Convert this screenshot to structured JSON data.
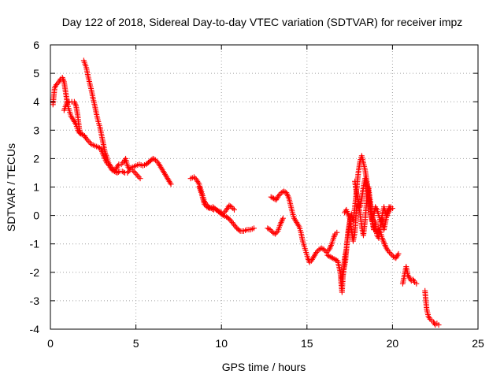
{
  "chart_data": {
    "type": "scatter",
    "title": "Day 122 of 2018, Sidereal Day-to-day VTEC variation (SDTVAR) for receiver impz",
    "xlabel": "GPS time / hours",
    "ylabel": "SDTVAR / TECUs",
    "xlim": [
      0,
      25
    ],
    "ylim": [
      -4,
      6
    ],
    "xticks": [
      0,
      5,
      10,
      15,
      20,
      25
    ],
    "yticks": [
      -4,
      -3,
      -2,
      -1,
      0,
      1,
      2,
      3,
      4,
      5,
      6
    ],
    "xtick_labels": [
      "0",
      "5",
      "10",
      "15",
      "20",
      "25"
    ],
    "ytick_labels": [
      "-4",
      "-3",
      "-2",
      "-1",
      "0",
      "1",
      "2",
      "3",
      "4",
      "5",
      "6"
    ],
    "grid": true,
    "marker": "+",
    "color": "#ff0000",
    "series": [
      {
        "name": "SDTVAR",
        "segments": [
          [
            [
              0.15,
              3.9
            ],
            [
              0.25,
              4.5
            ],
            [
              0.35,
              4.6
            ],
            [
              0.5,
              4.7
            ],
            [
              0.6,
              4.8
            ],
            [
              0.7,
              4.85
            ],
            [
              0.8,
              4.7
            ],
            [
              0.9,
              4.3
            ],
            [
              1.0,
              3.9
            ],
            [
              1.1,
              3.7
            ],
            [
              1.2,
              3.5
            ],
            [
              1.35,
              3.35
            ],
            [
              1.5,
              3.2
            ],
            [
              1.6,
              3.0
            ],
            [
              1.7,
              2.9
            ],
            [
              1.85,
              2.85
            ],
            [
              2.0,
              2.8
            ],
            [
              2.1,
              2.7
            ],
            [
              2.25,
              2.6
            ],
            [
              2.4,
              2.5
            ],
            [
              2.6,
              2.45
            ],
            [
              2.8,
              2.4
            ],
            [
              2.95,
              2.35
            ],
            [
              3.05,
              2.2
            ],
            [
              3.15,
              2.05
            ],
            [
              3.3,
              1.85
            ],
            [
              3.45,
              1.75
            ],
            [
              3.6,
              1.6
            ],
            [
              3.75,
              1.55
            ],
            [
              3.9,
              1.5
            ],
            [
              4.05,
              1.55
            ],
            [
              4.2,
              1.55
            ],
            [
              4.35,
              1.5
            ],
            [
              4.5,
              1.5
            ],
            [
              4.65,
              1.6
            ],
            [
              4.8,
              1.6
            ],
            [
              4.95,
              1.5
            ],
            [
              5.1,
              1.4
            ],
            [
              5.25,
              1.3
            ]
          ],
          [
            [
              0.8,
              3.7
            ],
            [
              0.95,
              3.95
            ],
            [
              1.1,
              4.0
            ],
            [
              1.25,
              4.0
            ],
            [
              1.4,
              4.0
            ],
            [
              1.5,
              3.85
            ],
            [
              1.6,
              3.5
            ],
            [
              1.7,
              3.0
            ],
            [
              1.75,
              2.9
            ]
          ],
          [
            [
              1.95,
              5.45
            ],
            [
              2.1,
              5.2
            ],
            [
              2.2,
              4.9
            ],
            [
              2.3,
              4.65
            ],
            [
              2.4,
              4.4
            ],
            [
              2.5,
              4.1
            ],
            [
              2.6,
              3.85
            ],
            [
              2.7,
              3.55
            ],
            [
              2.8,
              3.3
            ],
            [
              2.9,
              3.1
            ],
            [
              3.0,
              2.8
            ],
            [
              3.1,
              2.5
            ],
            [
              3.2,
              2.2
            ],
            [
              3.3,
              2.05
            ],
            [
              3.4,
              1.85
            ],
            [
              3.55,
              1.7
            ],
            [
              3.7,
              1.6
            ],
            [
              3.85,
              1.65
            ],
            [
              4.0,
              1.8
            ],
            [
              4.15,
              1.8
            ],
            [
              4.3,
              1.9
            ],
            [
              4.4,
              2.0
            ],
            [
              4.5,
              1.75
            ],
            [
              4.6,
              1.65
            ],
            [
              4.8,
              1.7
            ],
            [
              5.0,
              1.75
            ],
            [
              5.2,
              1.8
            ],
            [
              5.4,
              1.75
            ],
            [
              5.6,
              1.8
            ],
            [
              5.8,
              1.9
            ],
            [
              6.0,
              2.0
            ],
            [
              6.15,
              1.95
            ],
            [
              6.3,
              1.85
            ],
            [
              6.45,
              1.7
            ],
            [
              6.6,
              1.55
            ],
            [
              6.75,
              1.4
            ],
            [
              6.9,
              1.25
            ],
            [
              7.05,
              1.1
            ]
          ],
          [
            [
              8.2,
              1.3
            ],
            [
              8.4,
              1.35
            ],
            [
              8.55,
              1.25
            ],
            [
              8.7,
              1.1
            ],
            [
              8.8,
              0.9
            ],
            [
              8.9,
              0.7
            ],
            [
              9.0,
              0.5
            ],
            [
              9.1,
              0.4
            ],
            [
              9.25,
              0.3
            ],
            [
              9.4,
              0.25
            ],
            [
              9.55,
              0.2
            ],
            [
              9.7,
              0.2
            ],
            [
              9.85,
              0.15
            ],
            [
              10.0,
              0.1
            ],
            [
              10.15,
              0.1
            ],
            [
              10.3,
              0.2
            ],
            [
              10.45,
              0.35
            ],
            [
              10.6,
              0.3
            ],
            [
              10.75,
              0.2
            ]
          ],
          [
            [
              8.7,
              1.0
            ],
            [
              8.85,
              0.75
            ],
            [
              9.0,
              0.4
            ],
            [
              9.15,
              0.3
            ],
            [
              9.3,
              0.25
            ],
            [
              9.5,
              0.3
            ],
            [
              9.7,
              0.2
            ],
            [
              9.9,
              0.1
            ],
            [
              10.1,
              0.0
            ],
            [
              10.3,
              -0.05
            ],
            [
              10.5,
              -0.15
            ],
            [
              10.7,
              -0.3
            ],
            [
              10.9,
              -0.45
            ],
            [
              11.1,
              -0.55
            ],
            [
              11.3,
              -0.55
            ],
            [
              11.5,
              -0.5
            ],
            [
              11.7,
              -0.5
            ],
            [
              11.9,
              -0.45
            ]
          ],
          [
            [
              12.7,
              -0.45
            ],
            [
              12.85,
              -0.5
            ],
            [
              13.0,
              -0.6
            ],
            [
              13.15,
              -0.65
            ],
            [
              13.3,
              -0.55
            ],
            [
              13.45,
              -0.3
            ],
            [
              13.6,
              -0.1
            ]
          ],
          [
            [
              12.9,
              0.65
            ],
            [
              13.05,
              0.6
            ],
            [
              13.2,
              0.55
            ],
            [
              13.35,
              0.7
            ],
            [
              13.5,
              0.8
            ],
            [
              13.65,
              0.85
            ],
            [
              13.8,
              0.8
            ],
            [
              13.95,
              0.6
            ],
            [
              14.05,
              0.35
            ],
            [
              14.15,
              0.1
            ],
            [
              14.25,
              -0.1
            ],
            [
              14.4,
              -0.25
            ],
            [
              14.55,
              -0.4
            ],
            [
              14.65,
              -0.6
            ],
            [
              14.75,
              -0.9
            ],
            [
              14.85,
              -1.1
            ],
            [
              14.95,
              -1.3
            ],
            [
              15.05,
              -1.5
            ],
            [
              15.15,
              -1.65
            ],
            [
              15.25,
              -1.6
            ],
            [
              15.4,
              -1.45
            ],
            [
              15.55,
              -1.3
            ],
            [
              15.7,
              -1.2
            ],
            [
              15.85,
              -1.15
            ],
            [
              16.0,
              -1.2
            ],
            [
              16.15,
              -1.3
            ],
            [
              16.3,
              -1.2
            ],
            [
              16.45,
              -1.0
            ],
            [
              16.55,
              -0.8
            ],
            [
              16.65,
              -0.65
            ],
            [
              16.75,
              -0.6
            ]
          ],
          [
            [
              16.2,
              -1.4
            ],
            [
              16.35,
              -1.45
            ],
            [
              16.5,
              -1.5
            ],
            [
              16.65,
              -1.55
            ],
            [
              16.8,
              -1.6
            ],
            [
              16.95,
              -2.0
            ],
            [
              17.0,
              -2.4
            ],
            [
              17.05,
              -2.7
            ],
            [
              17.1,
              -2.2
            ],
            [
              17.2,
              -1.5
            ],
            [
              17.3,
              -1.2
            ],
            [
              17.4,
              -0.6
            ],
            [
              17.5,
              -0.2
            ],
            [
              17.6,
              0.05
            ],
            [
              17.7,
              -0.2
            ],
            [
              17.8,
              0.3
            ],
            [
              17.9,
              0.9
            ],
            [
              18.0,
              1.5
            ],
            [
              18.1,
              1.9
            ],
            [
              18.2,
              2.1
            ],
            [
              18.3,
              1.85
            ],
            [
              18.4,
              1.6
            ],
            [
              18.5,
              1.2
            ],
            [
              18.6,
              0.7
            ],
            [
              18.7,
              0.3
            ],
            [
              18.8,
              -0.1
            ],
            [
              18.9,
              -0.4
            ],
            [
              19.0,
              -0.5
            ],
            [
              19.1,
              -0.6
            ],
            [
              19.2,
              -0.5
            ],
            [
              19.3,
              -0.6
            ],
            [
              19.4,
              -0.8
            ],
            [
              19.5,
              -0.95
            ],
            [
              19.6,
              -1.1
            ],
            [
              19.75,
              -1.25
            ],
            [
              19.9,
              -1.35
            ],
            [
              20.05,
              -1.45
            ],
            [
              20.2,
              -1.5
            ],
            [
              20.35,
              -1.35
            ]
          ],
          [
            [
              17.05,
              -2.2
            ],
            [
              17.15,
              -1.9
            ],
            [
              17.25,
              -1.6
            ],
            [
              17.35,
              -0.9
            ],
            [
              17.45,
              -0.5
            ],
            [
              17.55,
              -0.1
            ]
          ],
          [
            [
              17.2,
              0.1
            ],
            [
              17.3,
              0.2
            ],
            [
              17.5,
              -0.1
            ],
            [
              17.6,
              -0.5
            ],
            [
              17.7,
              -0.9
            ],
            [
              17.8,
              -0.6
            ],
            [
              17.9,
              0.3
            ],
            [
              18.0,
              0.4
            ],
            [
              18.1,
              0.1
            ],
            [
              18.2,
              -0.4
            ],
            [
              18.3,
              -0.7
            ],
            [
              18.4,
              -0.2
            ],
            [
              18.5,
              0.6
            ],
            [
              18.6,
              1.0
            ],
            [
              18.7,
              0.5
            ],
            [
              18.8,
              -0.1
            ],
            [
              18.9,
              -0.5
            ],
            [
              19.0,
              -0.2
            ],
            [
              19.1,
              -0.7
            ],
            [
              19.2,
              -0.8
            ],
            [
              19.3,
              -0.3
            ],
            [
              19.4,
              -0.1
            ],
            [
              19.5,
              -0.5
            ],
            [
              19.6,
              -0.2
            ],
            [
              19.7,
              0.1
            ],
            [
              19.8,
              0.3
            ],
            [
              19.9,
              0.2
            ],
            [
              20.0,
              0.25
            ]
          ],
          [
            [
              17.8,
              1.2
            ],
            [
              17.9,
              0.8
            ],
            [
              18.0,
              0.5
            ],
            [
              18.1,
              0.3
            ],
            [
              18.2,
              0.6
            ],
            [
              18.3,
              1.0
            ],
            [
              18.4,
              1.3
            ],
            [
              18.5,
              1.1
            ],
            [
              18.6,
              0.8
            ],
            [
              18.7,
              0.2
            ],
            [
              18.8,
              -0.2
            ],
            [
              18.9,
              0.0
            ],
            [
              19.0,
              0.3
            ],
            [
              19.1,
              0.2
            ],
            [
              19.2,
              0.0
            ],
            [
              19.3,
              -0.2
            ],
            [
              19.4,
              0.0
            ],
            [
              19.5,
              0.3
            ],
            [
              19.6,
              0.1
            ],
            [
              19.7,
              0.0
            ],
            [
              19.8,
              0.2
            ],
            [
              19.9,
              0.3
            ]
          ],
          [
            [
              20.6,
              -2.4
            ],
            [
              20.7,
              -2.1
            ],
            [
              20.8,
              -1.8
            ],
            [
              20.9,
              -2.1
            ],
            [
              21.0,
              -2.2
            ],
            [
              21.1,
              -2.3
            ],
            [
              21.2,
              -2.25
            ],
            [
              21.3,
              -2.35
            ],
            [
              21.4,
              -2.4
            ]
          ],
          [
            [
              21.9,
              -2.65
            ],
            [
              21.95,
              -3.0
            ],
            [
              22.0,
              -3.3
            ],
            [
              22.1,
              -3.55
            ],
            [
              22.2,
              -3.65
            ],
            [
              22.3,
              -3.7
            ],
            [
              22.4,
              -3.75
            ],
            [
              22.5,
              -3.85
            ],
            [
              22.6,
              -3.8
            ],
            [
              22.7,
              -3.85
            ]
          ]
        ]
      }
    ]
  }
}
